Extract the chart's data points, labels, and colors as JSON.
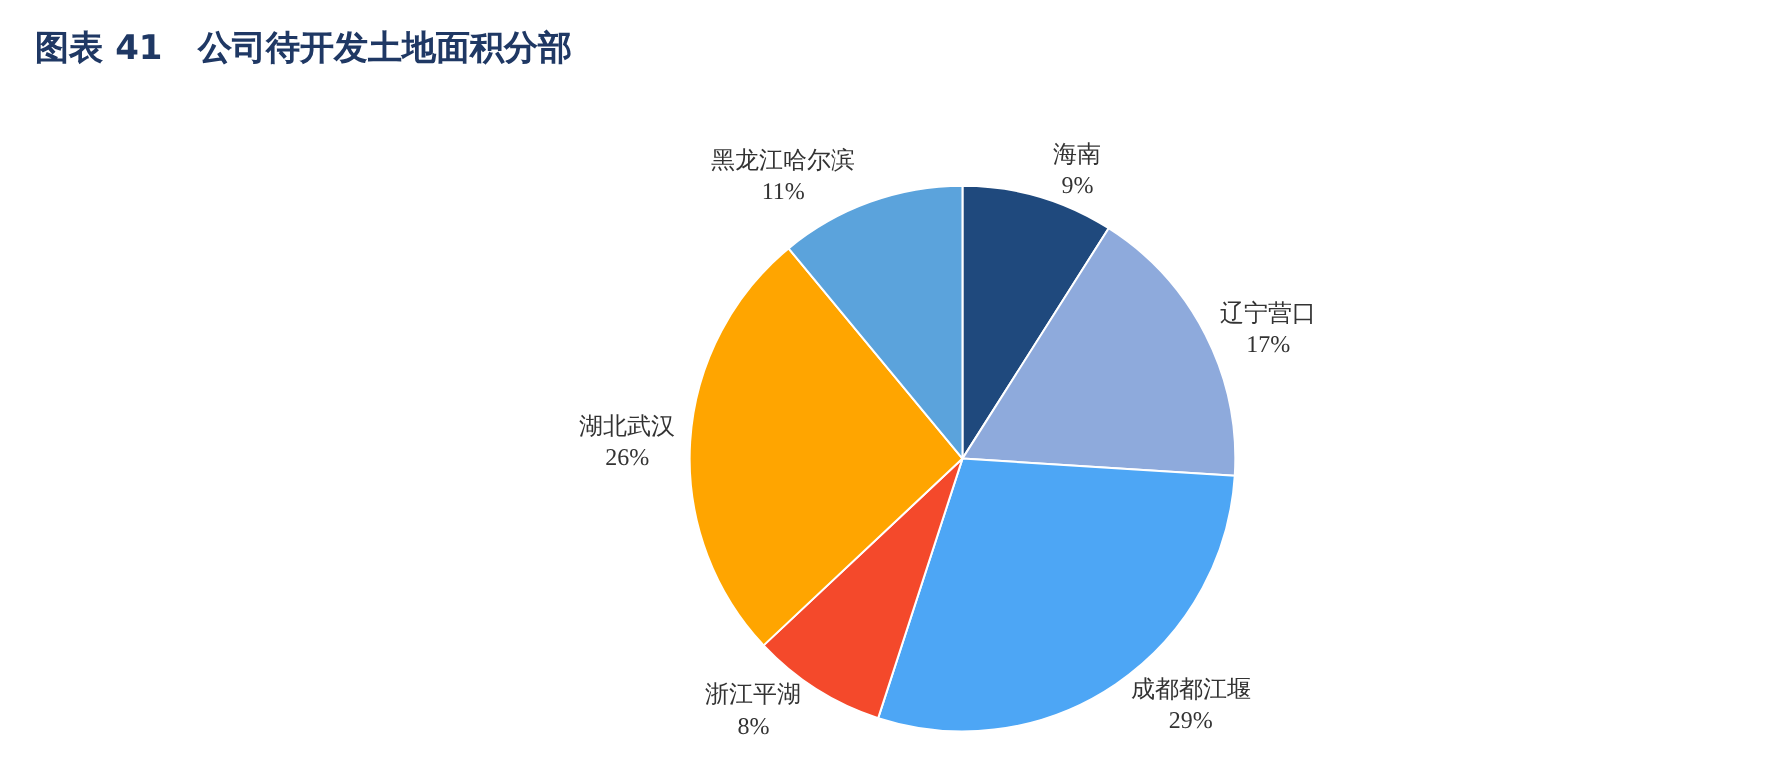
{
  "chart_data": {
    "type": "pie",
    "title": "图表 41   公司待开发土地面积分部",
    "categories": [
      "海南",
      "辽宁营口",
      "成都都江堰",
      "浙江平湖",
      "湖北武汉",
      "黑龙江哈尔滨"
    ],
    "values": [
      9,
      17,
      29,
      8,
      26,
      11
    ],
    "value_labels": [
      "9%",
      "17%",
      "29%",
      "8%",
      "26%",
      "11%"
    ],
    "colors": [
      "#1f497d",
      "#8eaadc",
      "#4da6f5",
      "#f4492b",
      "#ffa500",
      "#5ba3dc"
    ],
    "legend": false
  }
}
